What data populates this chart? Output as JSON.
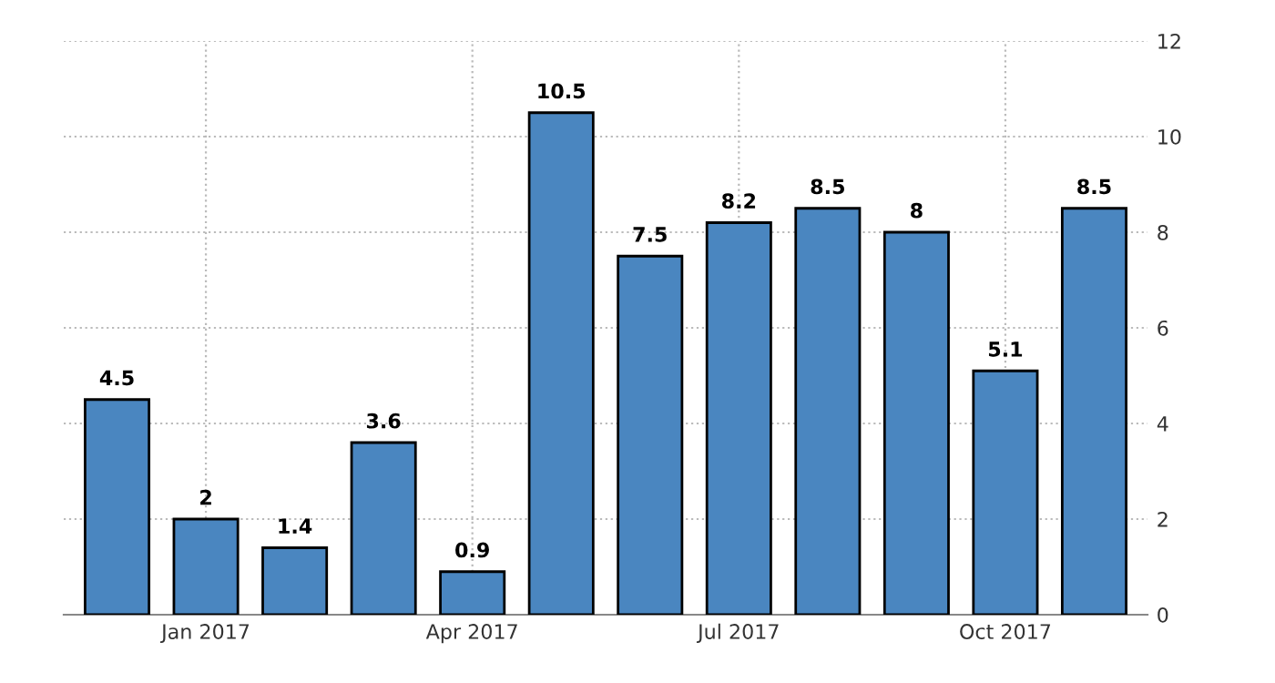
{
  "chart_data": {
    "type": "bar",
    "categories": [
      null,
      "Jan 2017",
      null,
      null,
      "Apr 2017",
      null,
      null,
      "Jul 2017",
      null,
      null,
      "Oct 2017",
      null
    ],
    "values": [
      4.5,
      2,
      1.4,
      3.6,
      0.9,
      10.5,
      7.5,
      8.2,
      8.5,
      8,
      5.1,
      8.5
    ],
    "color": "#4a86c0",
    "ylim": [
      0,
      12
    ],
    "yticks": [
      0,
      2,
      4,
      6,
      8,
      10,
      12
    ],
    "grid": true,
    "data_labels": true
  }
}
